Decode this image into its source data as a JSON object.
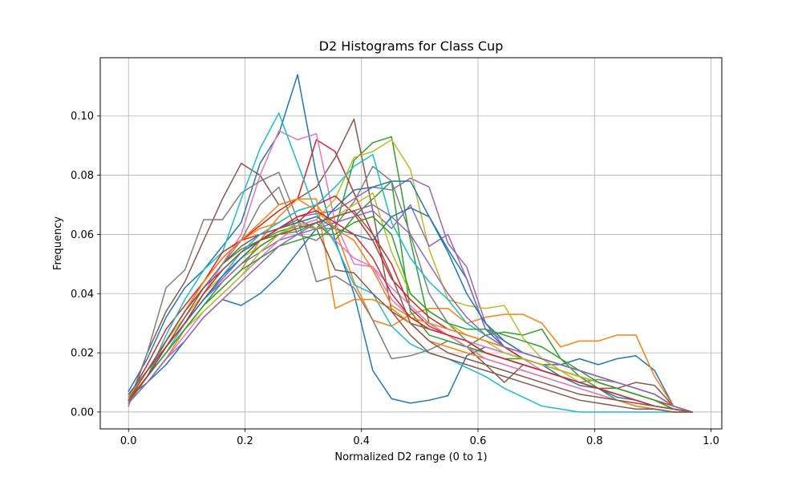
{
  "chart_data": {
    "type": "line",
    "title": "D2 Histograms for Class Cup",
    "xlabel": "Normalized D2 range (0 to 1)",
    "ylabel": "Frequency",
    "xlim": [
      -0.0485,
      1.0185
    ],
    "ylim": [
      -0.0057,
      0.1197
    ],
    "grid": true,
    "xticks": [
      0.0,
      0.2,
      0.4,
      0.6,
      0.8,
      1.0
    ],
    "xtick_labels": [
      "0.0",
      "0.2",
      "0.4",
      "0.6",
      "0.8",
      "1.0"
    ],
    "yticks": [
      0.0,
      0.02,
      0.04,
      0.06,
      0.08,
      0.1
    ],
    "ytick_labels": [
      "0.00",
      "0.02",
      "0.04",
      "0.06",
      "0.08",
      "0.10"
    ],
    "x": [
      0.0,
      0.0323,
      0.0645,
      0.0968,
      0.129,
      0.1613,
      0.1935,
      0.2258,
      0.2581,
      0.2903,
      0.3226,
      0.3548,
      0.3871,
      0.4194,
      0.4516,
      0.4839,
      0.5161,
      0.5484,
      0.5806,
      0.6129,
      0.6452,
      0.6774,
      0.7097,
      0.7419,
      0.7742,
      0.8065,
      0.8387,
      0.871,
      0.9032,
      0.9355,
      0.9677
    ],
    "series": [
      {
        "color": "#1f77b4",
        "values": [
          0.007,
          0.018,
          0.032,
          0.042,
          0.048,
          0.056,
          0.064,
          0.084,
          0.094,
          0.114,
          0.08,
          0.058,
          0.04,
          0.014,
          0.0045,
          0.003,
          0.004,
          0.0055,
          0.019,
          0.022,
          0.02,
          0.018,
          0.016,
          0.016,
          0.018,
          0.016,
          0.018,
          0.019,
          0.014,
          0.002,
          0.0
        ]
      },
      {
        "color": "#ff7f0e",
        "values": [
          0.004,
          0.012,
          0.024,
          0.034,
          0.044,
          0.052,
          0.058,
          0.062,
          0.064,
          0.068,
          0.07,
          0.062,
          0.044,
          0.031,
          0.029,
          0.033,
          0.035,
          0.035,
          0.03,
          0.032,
          0.033,
          0.033,
          0.03,
          0.022,
          0.024,
          0.024,
          0.026,
          0.026,
          0.012,
          0.002,
          0.0
        ]
      },
      {
        "color": "#2ca02c",
        "values": [
          0.004,
          0.014,
          0.024,
          0.034,
          0.042,
          0.05,
          0.055,
          0.058,
          0.061,
          0.063,
          0.062,
          0.062,
          0.085,
          0.091,
          0.093,
          0.058,
          0.03,
          0.026,
          0.022,
          0.026,
          0.027,
          0.026,
          0.028,
          0.018,
          0.012,
          0.008,
          0.004,
          0.002,
          0.001,
          0.0,
          0.0
        ]
      },
      {
        "color": "#d62728",
        "values": [
          0.005,
          0.016,
          0.028,
          0.036,
          0.044,
          0.052,
          0.058,
          0.063,
          0.068,
          0.072,
          0.092,
          0.088,
          0.074,
          0.06,
          0.05,
          0.035,
          0.029,
          0.026,
          0.024,
          0.02,
          0.018,
          0.016,
          0.014,
          0.012,
          0.01,
          0.008,
          0.006,
          0.004,
          0.002,
          0.001,
          0.0
        ]
      },
      {
        "color": "#9467bd",
        "values": [
          0.004,
          0.012,
          0.022,
          0.03,
          0.038,
          0.045,
          0.052,
          0.058,
          0.062,
          0.066,
          0.067,
          0.068,
          0.072,
          0.076,
          0.075,
          0.079,
          0.076,
          0.057,
          0.049,
          0.03,
          0.022,
          0.018,
          0.016,
          0.014,
          0.012,
          0.01,
          0.008,
          0.006,
          0.004,
          0.001,
          0.0
        ]
      },
      {
        "color": "#8c564b",
        "values": [
          0.003,
          0.02,
          0.034,
          0.044,
          0.058,
          0.072,
          0.084,
          0.08,
          0.07,
          0.072,
          0.076,
          0.086,
          0.099,
          0.068,
          0.034,
          0.03,
          0.028,
          0.026,
          0.022,
          0.016,
          0.01,
          0.016,
          0.014,
          0.012,
          0.01,
          0.008,
          0.008,
          0.01,
          0.009,
          0.002,
          0.0
        ]
      },
      {
        "color": "#e377c2",
        "values": [
          0.006,
          0.014,
          0.022,
          0.03,
          0.04,
          0.05,
          0.06,
          0.08,
          0.095,
          0.092,
          0.094,
          0.064,
          0.05,
          0.049,
          0.038,
          0.032,
          0.028,
          0.026,
          0.024,
          0.022,
          0.02,
          0.018,
          0.014,
          0.012,
          0.01,
          0.008,
          0.006,
          0.004,
          0.002,
          0.001,
          0.0
        ]
      },
      {
        "color": "#7f7f7f",
        "values": [
          0.002,
          0.02,
          0.042,
          0.048,
          0.065,
          0.065,
          0.074,
          0.078,
          0.081,
          0.065,
          0.044,
          0.046,
          0.042,
          0.031,
          0.018,
          0.019,
          0.021,
          0.024,
          0.022,
          0.02,
          0.018,
          0.016,
          0.014,
          0.012,
          0.01,
          0.011,
          0.01,
          0.008,
          0.006,
          0.002,
          0.0
        ]
      },
      {
        "color": "#bcbd22",
        "values": [
          0.004,
          0.014,
          0.024,
          0.032,
          0.04,
          0.046,
          0.052,
          0.056,
          0.06,
          0.063,
          0.065,
          0.072,
          0.086,
          0.088,
          0.092,
          0.082,
          0.055,
          0.038,
          0.036,
          0.035,
          0.036,
          0.025,
          0.018,
          0.014,
          0.01,
          0.008,
          0.006,
          0.004,
          0.002,
          0.001,
          0.0
        ]
      },
      {
        "color": "#17becf",
        "values": [
          0.004,
          0.012,
          0.026,
          0.038,
          0.048,
          0.054,
          0.072,
          0.089,
          0.101,
          0.084,
          0.067,
          0.057,
          0.043,
          0.04,
          0.029,
          0.023,
          0.02,
          0.018,
          0.015,
          0.012,
          0.008,
          0.005,
          0.002,
          0.001,
          0.0,
          0.0,
          0.0,
          0.0,
          0.0,
          0.0,
          0.0
        ]
      },
      {
        "color": "#1f77b4",
        "values": [
          0.005,
          0.01,
          0.016,
          0.024,
          0.032,
          0.038,
          0.036,
          0.04,
          0.046,
          0.054,
          0.062,
          0.069,
          0.075,
          0.076,
          0.078,
          0.078,
          0.066,
          0.055,
          0.045,
          0.028,
          0.022,
          0.018,
          0.016,
          0.012,
          0.009,
          0.008,
          0.005,
          0.004,
          0.002,
          0.001,
          0.0
        ]
      },
      {
        "color": "#ff7f0e",
        "values": [
          0.003,
          0.01,
          0.018,
          0.028,
          0.036,
          0.042,
          0.048,
          0.058,
          0.066,
          0.072,
          0.072,
          0.035,
          0.038,
          0.038,
          0.035,
          0.03,
          0.024,
          0.022,
          0.02,
          0.018,
          0.016,
          0.014,
          0.012,
          0.01,
          0.008,
          0.006,
          0.004,
          0.002,
          0.001,
          0.0,
          0.0
        ]
      },
      {
        "color": "#2ca02c",
        "values": [
          0.004,
          0.012,
          0.02,
          0.028,
          0.036,
          0.044,
          0.05,
          0.056,
          0.06,
          0.061,
          0.064,
          0.058,
          0.066,
          0.072,
          0.078,
          0.034,
          0.026,
          0.024,
          0.022,
          0.02,
          0.018,
          0.018,
          0.016,
          0.014,
          0.012,
          0.01,
          0.008,
          0.006,
          0.004,
          0.001,
          0.0
        ]
      },
      {
        "color": "#d62728",
        "values": [
          0.005,
          0.014,
          0.024,
          0.034,
          0.044,
          0.054,
          0.058,
          0.06,
          0.062,
          0.064,
          0.07,
          0.073,
          0.067,
          0.058,
          0.045,
          0.038,
          0.032,
          0.028,
          0.026,
          0.024,
          0.022,
          0.018,
          0.016,
          0.014,
          0.012,
          0.01,
          0.008,
          0.006,
          0.004,
          0.002,
          0.0
        ]
      },
      {
        "color": "#9467bd",
        "values": [
          0.004,
          0.012,
          0.022,
          0.03,
          0.038,
          0.044,
          0.05,
          0.054,
          0.058,
          0.06,
          0.062,
          0.064,
          0.066,
          0.068,
          0.062,
          0.07,
          0.056,
          0.06,
          0.045,
          0.028,
          0.024,
          0.02,
          0.018,
          0.016,
          0.014,
          0.012,
          0.01,
          0.008,
          0.006,
          0.002,
          0.0
        ]
      },
      {
        "color": "#8c564b",
        "values": [
          0.004,
          0.012,
          0.022,
          0.032,
          0.042,
          0.05,
          0.056,
          0.06,
          0.062,
          0.065,
          0.062,
          0.048,
          0.047,
          0.04,
          0.034,
          0.026,
          0.02,
          0.018,
          0.016,
          0.014,
          0.012,
          0.01,
          0.008,
          0.006,
          0.004,
          0.003,
          0.002,
          0.001,
          0.001,
          0.0,
          0.0
        ]
      },
      {
        "color": "#e377c2",
        "values": [
          0.003,
          0.01,
          0.018,
          0.026,
          0.034,
          0.04,
          0.046,
          0.052,
          0.058,
          0.063,
          0.065,
          0.058,
          0.052,
          0.049,
          0.042,
          0.036,
          0.03,
          0.026,
          0.022,
          0.018,
          0.016,
          0.014,
          0.012,
          0.01,
          0.008,
          0.006,
          0.004,
          0.003,
          0.002,
          0.001,
          0.0
        ]
      },
      {
        "color": "#7f7f7f",
        "values": [
          0.005,
          0.014,
          0.024,
          0.034,
          0.042,
          0.05,
          0.058,
          0.07,
          0.076,
          0.06,
          0.058,
          0.063,
          0.071,
          0.083,
          0.078,
          0.06,
          0.04,
          0.03,
          0.024,
          0.02,
          0.018,
          0.016,
          0.014,
          0.012,
          0.01,
          0.008,
          0.006,
          0.004,
          0.002,
          0.001,
          0.0
        ]
      },
      {
        "color": "#bcbd22",
        "values": [
          0.004,
          0.012,
          0.02,
          0.028,
          0.034,
          0.04,
          0.046,
          0.054,
          0.06,
          0.064,
          0.062,
          0.066,
          0.07,
          0.074,
          0.054,
          0.04,
          0.034,
          0.03,
          0.026,
          0.024,
          0.02,
          0.018,
          0.016,
          0.014,
          0.012,
          0.01,
          0.008,
          0.006,
          0.004,
          0.001,
          0.0
        ]
      },
      {
        "color": "#17becf",
        "values": [
          0.004,
          0.012,
          0.02,
          0.03,
          0.038,
          0.046,
          0.054,
          0.06,
          0.064,
          0.068,
          0.07,
          0.076,
          0.083,
          0.087,
          0.064,
          0.052,
          0.044,
          0.038,
          0.03,
          0.026,
          0.022,
          0.02,
          0.018,
          0.016,
          0.014,
          0.012,
          0.01,
          0.008,
          0.006,
          0.002,
          0.0
        ]
      },
      {
        "color": "#1f77b4",
        "values": [
          0.006,
          0.014,
          0.022,
          0.03,
          0.038,
          0.046,
          0.052,
          0.058,
          0.062,
          0.064,
          0.066,
          0.062,
          0.06,
          0.058,
          0.066,
          0.069,
          0.066,
          0.054,
          0.04,
          0.03,
          0.024,
          0.02,
          0.018,
          0.016,
          0.014,
          0.012,
          0.01,
          0.008,
          0.006,
          0.002,
          0.0
        ]
      },
      {
        "color": "#ff7f0e",
        "values": [
          0.005,
          0.014,
          0.024,
          0.034,
          0.044,
          0.052,
          0.058,
          0.064,
          0.07,
          0.072,
          0.068,
          0.062,
          0.058,
          0.048,
          0.036,
          0.032,
          0.03,
          0.028,
          0.026,
          0.024,
          0.022,
          0.02,
          0.018,
          0.016,
          0.014,
          0.012,
          0.01,
          0.008,
          0.006,
          0.002,
          0.0
        ]
      },
      {
        "color": "#2ca02c",
        "values": [
          0.003,
          0.012,
          0.02,
          0.028,
          0.036,
          0.042,
          0.048,
          0.052,
          0.056,
          0.058,
          0.06,
          0.06,
          0.064,
          0.066,
          0.06,
          0.04,
          0.034,
          0.03,
          0.028,
          0.028,
          0.026,
          0.024,
          0.022,
          0.018,
          0.014,
          0.01,
          0.008,
          0.006,
          0.004,
          0.001,
          0.0
        ]
      },
      {
        "color": "#d62728",
        "values": [
          0.004,
          0.012,
          0.022,
          0.03,
          0.04,
          0.048,
          0.054,
          0.058,
          0.062,
          0.066,
          0.068,
          0.064,
          0.06,
          0.052,
          0.04,
          0.032,
          0.028,
          0.026,
          0.024,
          0.02,
          0.018,
          0.016,
          0.014,
          0.012,
          0.01,
          0.008,
          0.006,
          0.004,
          0.002,
          0.001,
          0.0
        ]
      },
      {
        "color": "#9467bd",
        "values": [
          0.003,
          0.01,
          0.018,
          0.024,
          0.032,
          0.038,
          0.044,
          0.05,
          0.056,
          0.06,
          0.064,
          0.066,
          0.068,
          0.07,
          0.066,
          0.06,
          0.05,
          0.04,
          0.032,
          0.026,
          0.022,
          0.02,
          0.018,
          0.016,
          0.014,
          0.012,
          0.01,
          0.008,
          0.006,
          0.002,
          0.0
        ]
      },
      {
        "color": "#8c564b",
        "values": [
          0.004,
          0.014,
          0.024,
          0.034,
          0.042,
          0.048,
          0.054,
          0.058,
          0.06,
          0.062,
          0.064,
          0.066,
          0.068,
          0.06,
          0.046,
          0.03,
          0.024,
          0.02,
          0.018,
          0.016,
          0.014,
          0.012,
          0.01,
          0.008,
          0.006,
          0.005,
          0.004,
          0.003,
          0.002,
          0.001,
          0.0
        ]
      }
    ]
  }
}
